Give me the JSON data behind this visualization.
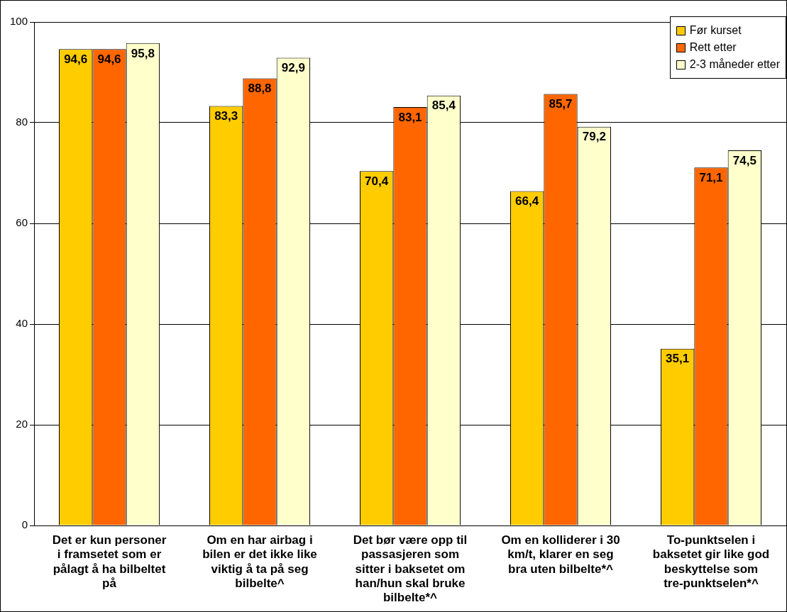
{
  "chart_data": {
    "type": "bar",
    "categories": [
      "Det er kun personer i framsetet som er pålagt å ha bilbeltet på",
      "Om en har airbag i bilen er det ikke like viktig å ta på seg bilbelte^",
      "Det bør være opp til passasjeren som sitter i baksetet om han/hun skal bruke bilbelte*^",
      "Om en kolliderer i 30 km/t, klarer en seg bra uten bilbelte*^",
      "To-punktselen i baksetet gir like god beskyttelse som tre-punktselen*^"
    ],
    "series": [
      {
        "name": "Før kurset",
        "color": "#ffcc00",
        "values": [
          94.6,
          83.3,
          70.4,
          66.4,
          35.1
        ],
        "value_labels": [
          "94,6",
          "83,3",
          "70,4",
          "66,4",
          "35,1"
        ]
      },
      {
        "name": "Rett etter",
        "color": "#ff6600",
        "values": [
          94.6,
          88.8,
          83.1,
          85.7,
          71.1
        ],
        "value_labels": [
          "94,6",
          "88,8",
          "83,1",
          "85,7",
          "71,1"
        ]
      },
      {
        "name": "2-3 måneder etter",
        "color": "#ffffcc",
        "values": [
          95.8,
          92.9,
          85.4,
          79.2,
          74.5
        ],
        "value_labels": [
          "95,8",
          "92,9",
          "85,4",
          "79,2",
          "74,5"
        ]
      }
    ],
    "ylim": [
      0,
      100
    ],
    "yticks": [
      0,
      20,
      40,
      60,
      80,
      100
    ],
    "grid": "y",
    "legend": "top right"
  }
}
